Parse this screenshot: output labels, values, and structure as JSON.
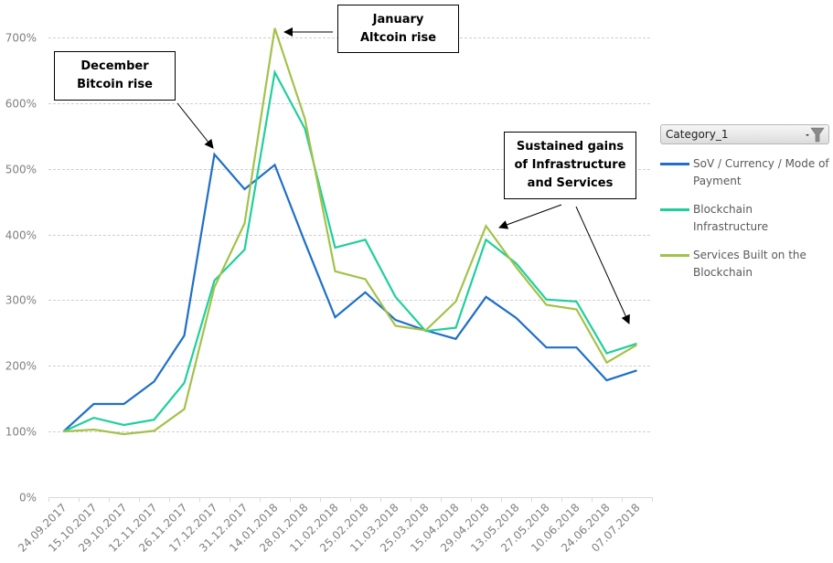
{
  "chart_data": {
    "type": "line",
    "title": "",
    "xlabel": "",
    "ylabel": "",
    "ylim": [
      0,
      700
    ],
    "y_unit": "%",
    "y_ticks": [
      "0%",
      "100%",
      "200%",
      "300%",
      "400%",
      "500%",
      "600%",
      "700%"
    ],
    "y_tick_values": [
      0,
      100,
      200,
      300,
      400,
      500,
      600,
      700
    ],
    "grid": "horizontal-dashed",
    "legend_position": "right",
    "categories": [
      "24.09.2017",
      "15.10.2017",
      "29.10.2017",
      "12.11.2017",
      "26.11.2017",
      "17.12.2017",
      "31.12.2017",
      "14.01.2018",
      "28.01.2018",
      "11.02.2018",
      "25.02.2018",
      "11.03.2018",
      "25.03.2018",
      "15.04.2018",
      "29.04.2018",
      "13.05.2018",
      "27.05.2018",
      "10.06.2018",
      "24.06.2018",
      "07.07.2018"
    ],
    "series": [
      {
        "name": "SoV / Currency / Mode of Payment",
        "color": "#1f6fc6",
        "values": [
          100,
          142,
          142,
          176,
          246,
          522,
          469,
          506,
          388,
          274,
          312,
          270,
          254,
          241,
          305,
          273,
          228,
          228,
          178,
          193
        ]
      },
      {
        "name": "Blockchain Infrastructure",
        "color": "#1fcf9b",
        "values": [
          100,
          121,
          110,
          118,
          174,
          330,
          377,
          647,
          561,
          380,
          392,
          305,
          253,
          258,
          392,
          356,
          301,
          298,
          219,
          234
        ]
      },
      {
        "name": "Services Built on the Blockchain",
        "color": "#a3c24a",
        "values": [
          100,
          103,
          96,
          101,
          134,
          320,
          417,
          714,
          576,
          344,
          332,
          261,
          254,
          298,
          413,
          350,
          293,
          286,
          205,
          232
        ]
      }
    ],
    "annotations": [
      {
        "text": "December\nBitcoin rise",
        "points_to": {
          "category": "17.12.2017",
          "series": "SoV / Currency / Mode of Payment"
        }
      },
      {
        "text": "January\nAltcoin rise",
        "points_to": {
          "category": "14.01.2018",
          "series": "Services Built on the Blockchain"
        }
      },
      {
        "text": "Sustained gains\nof Infrastructure\nand Services",
        "points_to": [
          {
            "category": "29.04.2018",
            "series": "Services Built on the Blockchain"
          },
          {
            "category": "07.07.2018",
            "series": "Blockchain Infrastructure"
          }
        ]
      }
    ]
  },
  "legend": {
    "filter_label": "Category_1",
    "filter_icon": "funnel-filter-icon",
    "dropdown_icon": "dropdown-arrow-icon"
  }
}
